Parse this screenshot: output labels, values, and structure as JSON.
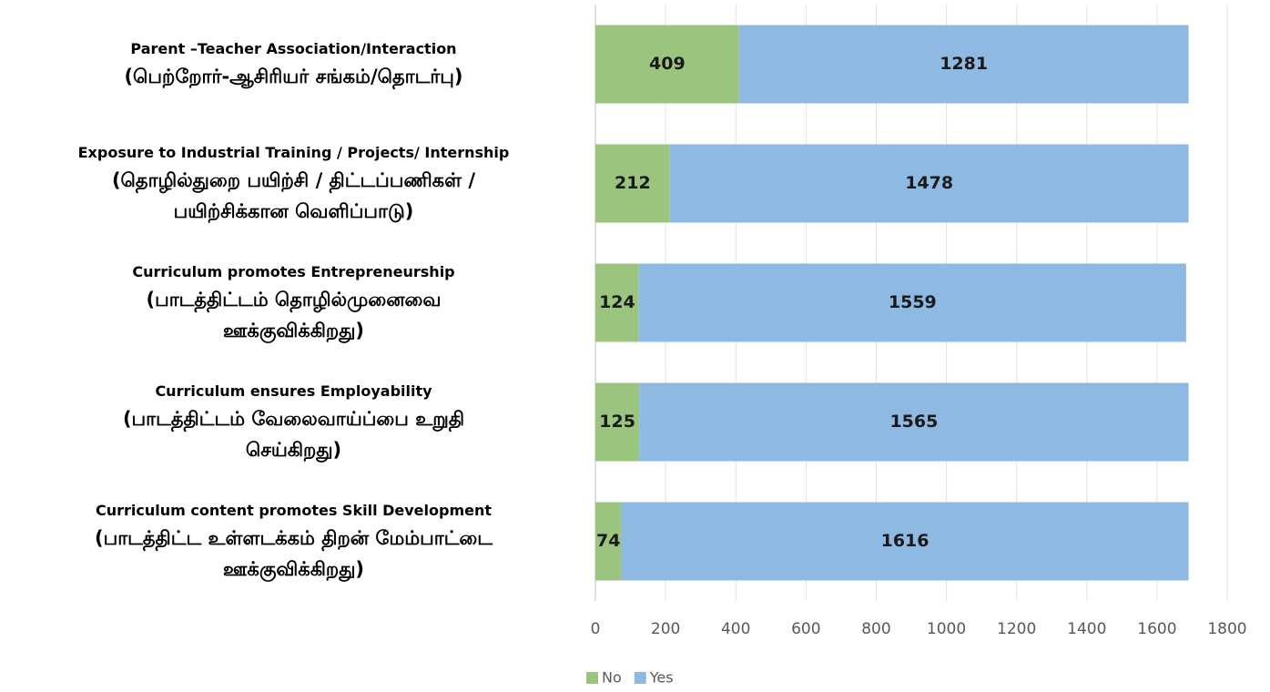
{
  "chart_data": {
    "type": "stacked-barh",
    "categories": [
      "Parent –Teacher Association/Interaction\n(பெற்றோர்-ஆசிரியர் சங்கம்/தொடர்பு)",
      "Exposure to Industrial Training / Projects/ Internship\n(தொழில்துறை பயிற்சி / திட்டப்பணிகள் /\nபயிற்சிக்கான வெளிப்பாடு)",
      "Curriculum promotes Entrepreneurship\n(பாடத்திட்டம் தொழில்முனைவை\nஊக்குவிக்கிறது)",
      "Curriculum ensures Employability\n(பாடத்திட்டம் வேலைவாய்ப்பை உறுதி\nசெய்கிறது)",
      "Curriculum content promotes Skill  Development\n(பாடத்திட்ட உள்ளடக்கம் திறன் மேம்பாட்டை\nஊக்குவிக்கிறது)"
    ],
    "series": [
      {
        "name": "No",
        "color": "#9bc57f",
        "values": [
          409,
          212,
          124,
          125,
          74
        ]
      },
      {
        "name": "Yes",
        "color": "#8eb9e2",
        "values": [
          1281,
          1478,
          1559,
          1565,
          1616
        ]
      }
    ],
    "xlim": [
      0,
      1800
    ],
    "xticks": [
      0,
      200,
      400,
      600,
      800,
      1000,
      1200,
      1400,
      1600,
      1800
    ],
    "grid": true,
    "legend": "bottom"
  }
}
